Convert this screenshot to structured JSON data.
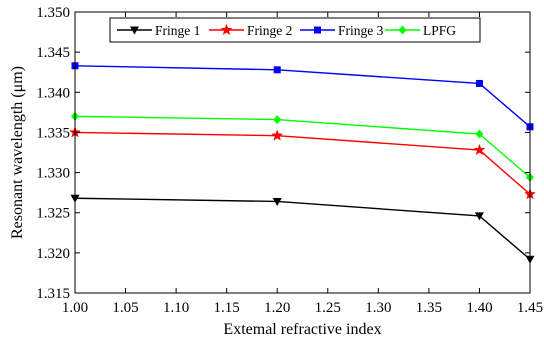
{
  "chart_data": {
    "type": "line",
    "title": "",
    "xlabel": "Extemal refractive index",
    "ylabel": "Resonant wavelength (μm)",
    "xlim": [
      1.0,
      1.45
    ],
    "ylim": [
      1.315,
      1.35
    ],
    "xticks": [
      "1.00",
      "1.05",
      "1.10",
      "1.15",
      "1.20",
      "1.25",
      "1.30",
      "1.35",
      "1.40",
      "1.45"
    ],
    "yticks": [
      "1.315",
      "1.320",
      "1.325",
      "1.330",
      "1.335",
      "1.340",
      "1.345",
      "1.350"
    ],
    "x": [
      1.0,
      1.2,
      1.4,
      1.45
    ],
    "grid": false,
    "legend_position": "top",
    "series": [
      {
        "name": "Fringe 1",
        "values": [
          1.3268,
          1.3264,
          1.3246,
          1.3192
        ],
        "color": "#000000",
        "marker": "triangle-down"
      },
      {
        "name": "Fringe 2",
        "values": [
          1.335,
          1.3346,
          1.3328,
          1.3273
        ],
        "color": "#ff0000",
        "marker": "star"
      },
      {
        "name": "Fringe 3",
        "values": [
          1.3433,
          1.3428,
          1.3411,
          1.3357
        ],
        "color": "#0000ff",
        "marker": "square"
      },
      {
        "name": "LPFG",
        "values": [
          1.337,
          1.3366,
          1.3348,
          1.3294
        ],
        "color": "#00ff00",
        "marker": "diamond"
      }
    ]
  }
}
